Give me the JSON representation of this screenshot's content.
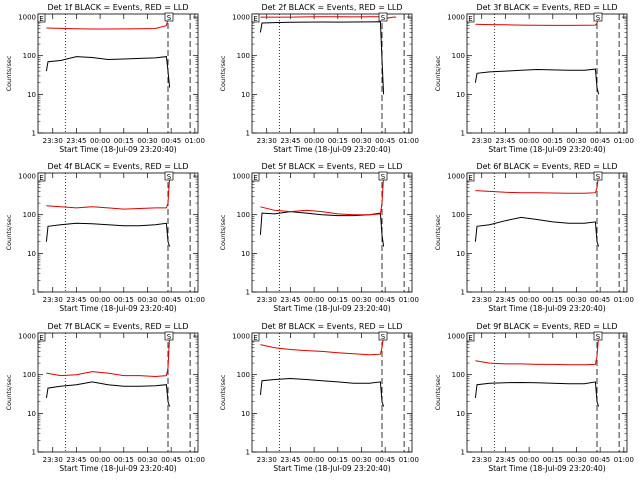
{
  "ylabel": "Counts/sec",
  "xlabel": "Start Time (18-Jul-09 23:20:40)",
  "y_ticks": [
    "1",
    "10",
    "100",
    "1000"
  ],
  "x_ticks": [
    "23:30",
    "23:45",
    "00:00",
    "00:15",
    "00:30",
    "00:45",
    "01:00"
  ],
  "colors": {
    "events": "#000000",
    "lld": "#e00000",
    "background": "#ffffff"
  },
  "chart_data": [
    {
      "type": "line",
      "title": "Det 1f BLACK = Events, RED = LLD",
      "yscale": "log",
      "ylim": [
        1,
        1200
      ],
      "x_range": [
        "23:20:40",
        "01:02"
      ],
      "xlabel": "Start Time (18-Jul-09 23:20:40)",
      "ylabel": "Counts/sec",
      "marker_box": "E",
      "marker_box2": "S",
      "vlines": [
        {
          "time": "23:38",
          "style": "dotted"
        },
        {
          "time": "00:43",
          "style": "dashed"
        },
        {
          "time": "00:57",
          "style": "dashed"
        }
      ],
      "series": [
        {
          "name": "Events",
          "color": "#000000",
          "times": [
            "23:26",
            "23:27",
            "23:35",
            "23:45",
            "23:55",
            "00:05",
            "00:15",
            "00:25",
            "00:35",
            "00:42",
            "00:43",
            "00:44"
          ],
          "values": [
            40,
            70,
            75,
            95,
            90,
            80,
            82,
            85,
            88,
            95,
            40,
            15
          ]
        },
        {
          "name": "LLD",
          "color": "#e00000",
          "times": [
            "23:26",
            "23:35",
            "23:45",
            "23:55",
            "00:05",
            "00:15",
            "00:25",
            "00:35",
            "00:42",
            "00:43",
            "00:44"
          ],
          "values": [
            520,
            510,
            500,
            490,
            490,
            495,
            500,
            505,
            600,
            900,
            1000
          ]
        }
      ]
    },
    {
      "type": "line",
      "title": "Det 2f BLACK = Events, RED = LLD",
      "yscale": "log",
      "ylim": [
        1,
        1200
      ],
      "x_range": [
        "23:20:40",
        "01:02"
      ],
      "xlabel": "Start Time (18-Jul-09 23:20:40)",
      "ylabel": "Counts/sec",
      "marker_box": "E",
      "marker_box2": "S",
      "vlines": [
        {
          "time": "23:38",
          "style": "dotted"
        },
        {
          "time": "00:43",
          "style": "dashed"
        },
        {
          "time": "00:57",
          "style": "dashed"
        }
      ],
      "series": [
        {
          "name": "Events",
          "color": "#000000",
          "times": [
            "23:26",
            "23:27",
            "23:35",
            "23:45",
            "23:55",
            "00:05",
            "00:15",
            "00:25",
            "00:35",
            "00:42",
            "00:43",
            "00:44"
          ],
          "values": [
            400,
            700,
            720,
            730,
            740,
            745,
            740,
            745,
            750,
            760,
            80,
            10
          ]
        },
        {
          "name": "LLD",
          "color": "#e00000",
          "times": [
            "23:26",
            "23:35",
            "23:45",
            "23:55",
            "00:05",
            "00:15",
            "00:25",
            "00:35",
            "00:42",
            "00:43",
            "00:44",
            "00:50",
            "00:52"
          ],
          "values": [
            1000,
            1000,
            1000,
            1010,
            1020,
            1020,
            1010,
            1015,
            1020,
            1050,
            900,
            1000,
            1000
          ]
        }
      ]
    },
    {
      "type": "line",
      "title": "Det 3f BLACK = Events, RED = LLD",
      "yscale": "log",
      "ylim": [
        1,
        1200
      ],
      "x_range": [
        "23:20:40",
        "01:02"
      ],
      "xlabel": "Start Time (18-Jul-09 23:20:40)",
      "ylabel": "Counts/sec",
      "marker_box": "E",
      "marker_box2": "S",
      "vlines": [
        {
          "time": "23:38",
          "style": "dotted"
        },
        {
          "time": "00:43",
          "style": "dashed"
        },
        {
          "time": "00:57",
          "style": "dashed"
        }
      ],
      "series": [
        {
          "name": "Events",
          "color": "#000000",
          "times": [
            "23:26",
            "23:27",
            "23:35",
            "23:45",
            "23:55",
            "00:05",
            "00:15",
            "00:25",
            "00:35",
            "00:42",
            "00:43",
            "00:44"
          ],
          "values": [
            20,
            35,
            38,
            40,
            42,
            44,
            43,
            42,
            42,
            45,
            15,
            10
          ]
        },
        {
          "name": "LLD",
          "color": "#e00000",
          "times": [
            "23:26",
            "23:35",
            "23:45",
            "23:55",
            "00:05",
            "00:15",
            "00:25",
            "00:35",
            "00:42",
            "00:43",
            "00:44"
          ],
          "values": [
            650,
            640,
            630,
            620,
            615,
            610,
            610,
            615,
            620,
            700,
            1000
          ]
        }
      ]
    },
    {
      "type": "line",
      "title": "Det 4f BLACK = Events, RED = LLD",
      "yscale": "log",
      "ylim": [
        1,
        1200
      ],
      "x_range": [
        "23:20:40",
        "01:02"
      ],
      "xlabel": "Start Time (18-Jul-09 23:20:40)",
      "ylabel": "Counts/sec",
      "marker_box": "E",
      "marker_box2": "S",
      "vlines": [
        {
          "time": "23:38",
          "style": "dotted"
        },
        {
          "time": "00:43",
          "style": "dashed"
        },
        {
          "time": "00:57",
          "style": "dashed"
        }
      ],
      "series": [
        {
          "name": "Events",
          "color": "#000000",
          "times": [
            "23:26",
            "23:27",
            "23:35",
            "23:45",
            "23:55",
            "00:05",
            "00:15",
            "00:25",
            "00:35",
            "00:42",
            "00:43",
            "00:44"
          ],
          "values": [
            20,
            50,
            55,
            60,
            58,
            55,
            52,
            52,
            55,
            60,
            20,
            15
          ]
        },
        {
          "name": "LLD",
          "color": "#e00000",
          "times": [
            "23:26",
            "23:35",
            "23:45",
            "23:55",
            "00:05",
            "00:15",
            "00:25",
            "00:35",
            "00:42",
            "00:43",
            "00:44"
          ],
          "values": [
            170,
            160,
            150,
            160,
            150,
            140,
            145,
            150,
            150,
            200,
            900
          ]
        }
      ]
    },
    {
      "type": "line",
      "title": "Det 5f BLACK = Events, RED = LLD",
      "yscale": "log",
      "ylim": [
        1,
        1200
      ],
      "x_range": [
        "23:20:40",
        "01:02"
      ],
      "xlabel": "Start Time (18-Jul-09 23:20:40)",
      "ylabel": "Counts/sec",
      "marker_box": "E",
      "marker_box2": "S",
      "vlines": [
        {
          "time": "23:38",
          "style": "dotted"
        },
        {
          "time": "00:43",
          "style": "dashed"
        },
        {
          "time": "00:57",
          "style": "dashed"
        }
      ],
      "series": [
        {
          "name": "Events",
          "color": "#000000",
          "times": [
            "23:26",
            "23:27",
            "23:35",
            "23:45",
            "23:55",
            "00:05",
            "00:15",
            "00:25",
            "00:35",
            "00:42",
            "00:43",
            "00:44"
          ],
          "values": [
            30,
            110,
            105,
            120,
            110,
            100,
            95,
            95,
            100,
            110,
            30,
            15
          ]
        },
        {
          "name": "LLD",
          "color": "#e00000",
          "times": [
            "23:26",
            "23:35",
            "23:45",
            "23:55",
            "00:05",
            "00:15",
            "00:25",
            "00:35",
            "00:42",
            "00:43",
            "00:44"
          ],
          "values": [
            160,
            130,
            120,
            130,
            120,
            105,
            100,
            100,
            105,
            200,
            1000
          ]
        }
      ]
    },
    {
      "type": "line",
      "title": "Det 6f BLACK = Events, RED = LLD",
      "yscale": "log",
      "ylim": [
        1,
        1200
      ],
      "x_range": [
        "23:20:40",
        "01:02"
      ],
      "xlabel": "Start Time (18-Jul-09 23:20:40)",
      "ylabel": "Counts/sec",
      "marker_box": "E",
      "marker_box2": "S",
      "vlines": [
        {
          "time": "23:38",
          "style": "dotted"
        },
        {
          "time": "00:43",
          "style": "dashed"
        },
        {
          "time": "00:57",
          "style": "dashed"
        }
      ],
      "series": [
        {
          "name": "Events",
          "color": "#000000",
          "times": [
            "23:26",
            "23:27",
            "23:35",
            "23:45",
            "23:55",
            "00:05",
            "00:15",
            "00:25",
            "00:35",
            "00:42",
            "00:43",
            "00:44"
          ],
          "values": [
            20,
            50,
            55,
            70,
            85,
            75,
            65,
            60,
            60,
            65,
            20,
            15
          ]
        },
        {
          "name": "LLD",
          "color": "#e00000",
          "times": [
            "23:26",
            "23:35",
            "23:45",
            "23:55",
            "00:05",
            "00:15",
            "00:25",
            "00:35",
            "00:42",
            "00:43",
            "00:44"
          ],
          "values": [
            420,
            400,
            380,
            370,
            370,
            365,
            360,
            360,
            370,
            500,
            1000
          ]
        }
      ]
    },
    {
      "type": "line",
      "title": "Det 7f BLACK = Events, RED = LLD",
      "yscale": "log",
      "ylim": [
        1,
        1200
      ],
      "x_range": [
        "23:20:40",
        "01:02"
      ],
      "xlabel": "Start Time (18-Jul-09 23:20:40)",
      "ylabel": "Counts/sec",
      "marker_box": "E",
      "marker_box2": "S",
      "vlines": [
        {
          "time": "23:38",
          "style": "dotted"
        },
        {
          "time": "00:43",
          "style": "dashed"
        },
        {
          "time": "00:57",
          "style": "dashed"
        }
      ],
      "series": [
        {
          "name": "Events",
          "color": "#000000",
          "times": [
            "23:26",
            "23:27",
            "23:35",
            "23:45",
            "23:55",
            "00:05",
            "00:15",
            "00:25",
            "00:35",
            "00:42",
            "00:43",
            "00:44"
          ],
          "values": [
            25,
            45,
            50,
            55,
            65,
            55,
            50,
            50,
            52,
            55,
            20,
            15
          ]
        },
        {
          "name": "LLD",
          "color": "#e00000",
          "times": [
            "23:26",
            "23:35",
            "23:45",
            "23:55",
            "00:05",
            "00:15",
            "00:25",
            "00:35",
            "00:42",
            "00:43",
            "00:44"
          ],
          "values": [
            110,
            95,
            100,
            120,
            110,
            95,
            95,
            90,
            95,
            150,
            1000
          ]
        }
      ]
    },
    {
      "type": "line",
      "title": "Det 8f BLACK = Events, RED = LLD",
      "yscale": "log",
      "ylim": [
        1,
        1200
      ],
      "x_range": [
        "23:20:40",
        "01:02"
      ],
      "xlabel": "Start Time (18-Jul-09 23:20:40)",
      "ylabel": "Counts/sec",
      "marker_box": "E",
      "marker_box2": "S",
      "vlines": [
        {
          "time": "23:38",
          "style": "dotted"
        },
        {
          "time": "00:43",
          "style": "dashed"
        },
        {
          "time": "00:57",
          "style": "dashed"
        }
      ],
      "series": [
        {
          "name": "Events",
          "color": "#000000",
          "times": [
            "23:26",
            "23:27",
            "23:35",
            "23:45",
            "23:55",
            "00:05",
            "00:15",
            "00:25",
            "00:35",
            "00:42",
            "00:43",
            "00:44"
          ],
          "values": [
            30,
            70,
            75,
            80,
            75,
            70,
            65,
            60,
            60,
            65,
            20,
            15
          ]
        },
        {
          "name": "LLD",
          "color": "#e00000",
          "times": [
            "23:26",
            "23:35",
            "23:45",
            "23:55",
            "00:05",
            "00:15",
            "00:25",
            "00:35",
            "00:42",
            "00:43",
            "00:44"
          ],
          "values": [
            600,
            500,
            450,
            420,
            400,
            370,
            350,
            330,
            340,
            500,
            1000
          ]
        }
      ]
    },
    {
      "type": "line",
      "title": "Det 9f BLACK = Events, RED = LLD",
      "yscale": "log",
      "ylim": [
        1,
        1200
      ],
      "x_range": [
        "23:20:40",
        "01:02"
      ],
      "xlabel": "Start Time (18-Jul-09 23:20:40)",
      "ylabel": "Counts/sec",
      "marker_box": "E",
      "marker_box2": "S",
      "vlines": [
        {
          "time": "23:38",
          "style": "dotted"
        },
        {
          "time": "00:43",
          "style": "dashed"
        },
        {
          "time": "00:57",
          "style": "dashed"
        }
      ],
      "series": [
        {
          "name": "Events",
          "color": "#000000",
          "times": [
            "23:26",
            "23:27",
            "23:35",
            "23:45",
            "23:55",
            "00:05",
            "00:15",
            "00:25",
            "00:35",
            "00:42",
            "00:43",
            "00:44"
          ],
          "values": [
            25,
            55,
            60,
            62,
            63,
            62,
            60,
            58,
            58,
            65,
            20,
            15
          ]
        },
        {
          "name": "LLD",
          "color": "#e00000",
          "times": [
            "23:26",
            "23:35",
            "23:45",
            "23:55",
            "00:05",
            "00:15",
            "00:25",
            "00:35",
            "00:42",
            "00:43",
            "00:44"
          ],
          "values": [
            230,
            200,
            190,
            190,
            185,
            185,
            180,
            180,
            185,
            300,
            1000
          ]
        }
      ]
    }
  ]
}
